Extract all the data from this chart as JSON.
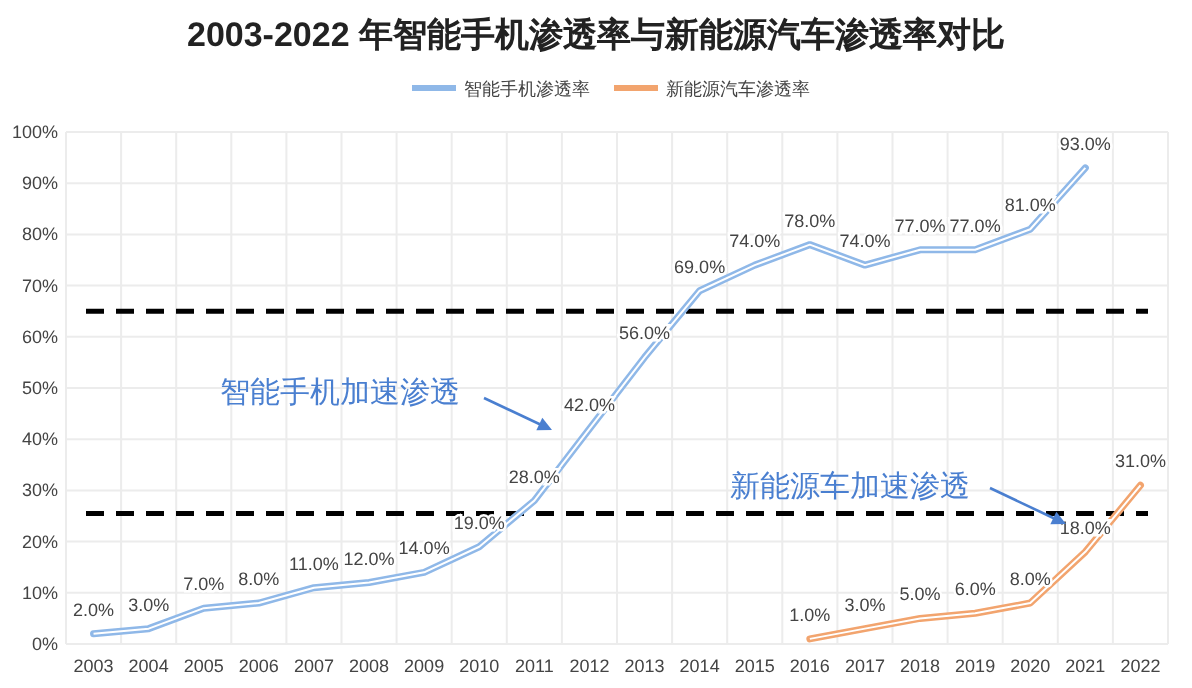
{
  "chart_data": {
    "type": "line",
    "title": "2003-2022 年智能手机渗透率与新能源汽车渗透率对比",
    "categories": [
      "2003",
      "2004",
      "2005",
      "2006",
      "2007",
      "2008",
      "2009",
      "2010",
      "2011",
      "2012",
      "2013",
      "2014",
      "2015",
      "2016",
      "2017",
      "2018",
      "2019",
      "2020",
      "2021",
      "2022"
    ],
    "series": [
      {
        "name": "智能手机渗透率",
        "color": "#8fb8e8",
        "values": [
          2,
          3,
          7,
          8,
          11,
          12,
          14,
          19,
          28,
          42,
          56,
          69,
          74,
          78,
          74,
          77,
          77,
          81,
          93,
          null
        ],
        "value_labels": [
          "2.0%",
          "3.0%",
          "7.0%",
          "8.0%",
          "11.0%",
          "12.0%",
          "14.0%",
          "19.0%",
          "28.0%",
          "42.0%",
          "56.0%",
          "69.0%",
          "74.0%",
          "78.0%",
          "74.0%",
          "77.0%",
          "77.0%",
          "81.0%",
          "93.0%",
          null
        ]
      },
      {
        "name": "新能源汽车渗透率",
        "color": "#f2a46e",
        "values": [
          null,
          null,
          null,
          null,
          null,
          null,
          null,
          null,
          null,
          null,
          null,
          null,
          null,
          1,
          3,
          5,
          6,
          8,
          18,
          31
        ],
        "value_labels": [
          null,
          null,
          null,
          null,
          null,
          null,
          null,
          null,
          null,
          null,
          null,
          null,
          null,
          "1.0%",
          "3.0%",
          "5.0%",
          "6.0%",
          "8.0%",
          "18.0%",
          "31.0%"
        ]
      }
    ],
    "ylim": [
      0,
      100
    ],
    "yticks": [
      {
        "value": 0,
        "label": "0%"
      },
      {
        "value": 10,
        "label": "10%"
      },
      {
        "value": 20,
        "label": "20%"
      },
      {
        "value": 30,
        "label": "30%"
      },
      {
        "value": 40,
        "label": "40%"
      },
      {
        "value": 50,
        "label": "50%"
      },
      {
        "value": 60,
        "label": "60%"
      },
      {
        "value": 70,
        "label": "70%"
      },
      {
        "value": 80,
        "label": "80%"
      },
      {
        "value": 90,
        "label": "90%"
      },
      {
        "value": 100,
        "label": "100%"
      }
    ],
    "grid": true,
    "legend": "top",
    "marker": "none",
    "line_style": "solid",
    "ref_lines": [
      {
        "axis": "y",
        "value": 65,
        "color": "#000000",
        "line_style": "dashed"
      },
      {
        "axis": "y",
        "value": 25.5,
        "color": "#000000",
        "line_style": "dashed"
      }
    ],
    "annotations": [
      "智能手机加速渗透",
      "新能源车加速渗透"
    ]
  }
}
